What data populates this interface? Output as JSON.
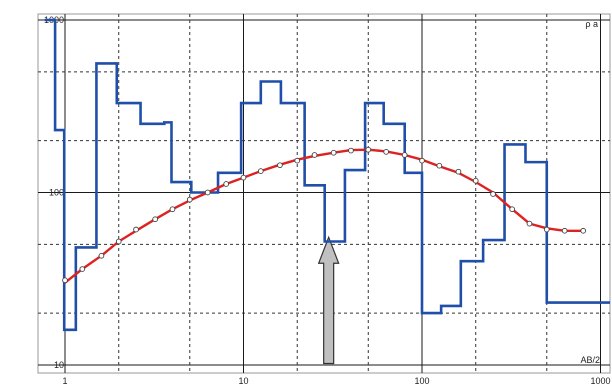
{
  "chart_data": {
    "type": "line",
    "title": "",
    "xlabel": "AB/2",
    "ylabel": "ρ a",
    "xscale": "log",
    "yscale": "log",
    "xlim": [
      1,
      1000
    ],
    "ylim": [
      10,
      1000
    ],
    "grid": true,
    "x_ticks": [
      {
        "value": 1,
        "label": "1"
      },
      {
        "value": 10,
        "label": "10"
      },
      {
        "value": 100,
        "label": "100"
      },
      {
        "value": 1000,
        "label": "1000"
      }
    ],
    "y_ticks": [
      {
        "value": 10,
        "label": "10"
      },
      {
        "value": 100,
        "label": "100"
      },
      {
        "value": 1000,
        "label": "1000"
      }
    ],
    "x_minor_gridlines": [
      2,
      5,
      20,
      50,
      200,
      500
    ],
    "y_minor_gridlines": [
      20,
      50,
      200,
      500
    ],
    "series": [
      {
        "kind": "model-steps",
        "color": "#1f4fa8",
        "steps": [
          {
            "x0": 0.77,
            "x1": 0.88,
            "y": 1000
          },
          {
            "x0": 0.88,
            "x1": 0.99,
            "y": 230
          },
          {
            "x0": 0.99,
            "x1": 1.15,
            "y": 16
          },
          {
            "x0": 1.15,
            "x1": 1.5,
            "y": 48
          },
          {
            "x0": 1.5,
            "x1": 1.95,
            "y": 560
          },
          {
            "x0": 1.95,
            "x1": 2.65,
            "y": 330
          },
          {
            "x0": 2.65,
            "x1": 3.6,
            "y": 250
          },
          {
            "x0": 3.6,
            "x1": 3.95,
            "y": 255
          },
          {
            "x0": 3.95,
            "x1": 5.1,
            "y": 115
          },
          {
            "x0": 5.1,
            "x1": 7.2,
            "y": 100
          },
          {
            "x0": 7.2,
            "x1": 9.7,
            "y": 130
          },
          {
            "x0": 9.7,
            "x1": 12.5,
            "y": 330
          },
          {
            "x0": 12.5,
            "x1": 16.2,
            "y": 440
          },
          {
            "x0": 16.2,
            "x1": 22.0,
            "y": 330
          },
          {
            "x0": 22.0,
            "x1": 28.5,
            "y": 110
          },
          {
            "x0": 28.5,
            "x1": 37.0,
            "y": 52
          },
          {
            "x0": 37.0,
            "x1": 48.0,
            "y": 135
          },
          {
            "x0": 48.0,
            "x1": 61.0,
            "y": 330
          },
          {
            "x0": 61.0,
            "x1": 80.0,
            "y": 250
          },
          {
            "x0": 80.0,
            "x1": 100.0,
            "y": 130
          },
          {
            "x0": 100.0,
            "x1": 128.0,
            "y": 20
          },
          {
            "x0": 128.0,
            "x1": 165.0,
            "y": 22
          },
          {
            "x0": 165.0,
            "x1": 220.0,
            "y": 40
          },
          {
            "x0": 220.0,
            "x1": 290.0,
            "y": 53
          },
          {
            "x0": 290.0,
            "x1": 380.0,
            "y": 190
          },
          {
            "x0": 380.0,
            "x1": 500.0,
            "y": 150
          },
          {
            "x0": 500.0,
            "x1": 1200.0,
            "y": 23
          }
        ]
      },
      {
        "kind": "fitted-curve",
        "color": "#dd2222",
        "x": [
          1,
          1.25,
          1.6,
          2,
          2.5,
          3.2,
          4,
          5,
          6.3,
          8,
          10,
          12.5,
          16,
          20,
          25,
          32,
          40,
          50,
          63,
          80,
          100,
          125,
          160,
          200,
          250,
          320,
          400,
          500,
          630,
          800
        ],
        "y": [
          30,
          36,
          43,
          52,
          60,
          70,
          80,
          90,
          100,
          112,
          122,
          133,
          145,
          155,
          163,
          170,
          176,
          177,
          173,
          165,
          155,
          142,
          130,
          115,
          100,
          80,
          66,
          62,
          60,
          60
        ]
      },
      {
        "kind": "observed-points",
        "color": "#dd2222",
        "x": [
          1,
          1.25,
          1.6,
          2,
          2.5,
          3.2,
          4,
          5,
          6.3,
          8,
          10,
          12.5,
          16,
          20,
          25,
          32,
          40,
          50,
          63,
          80,
          100,
          125,
          160,
          200,
          250,
          320,
          400,
          500,
          630,
          800
        ],
        "y": [
          31,
          36,
          43,
          52,
          61,
          70,
          80,
          91,
          100,
          112,
          122,
          133,
          144,
          153,
          165,
          170,
          175,
          177,
          172,
          165,
          153,
          143,
          132,
          117,
          98,
          80,
          66,
          61,
          60,
          60
        ]
      }
    ],
    "annotations": [
      {
        "kind": "arrow",
        "direction": "up",
        "at_x": 30,
        "tip_y": 55,
        "base_y": 10.2,
        "fill": "#c0c0c0",
        "stroke": "#333333"
      }
    ]
  }
}
